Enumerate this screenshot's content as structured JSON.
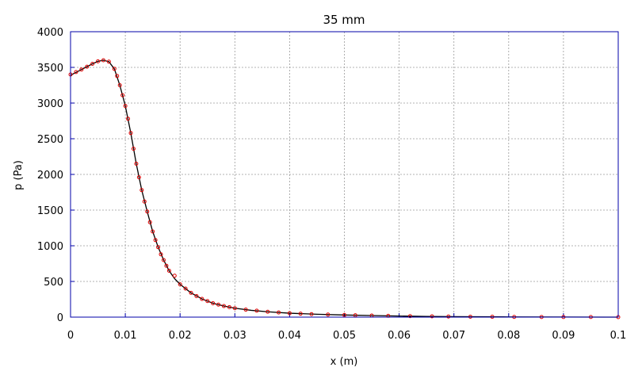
{
  "chart_data": {
    "type": "line",
    "title": "35 mm",
    "xlabel": "x (m)",
    "ylabel": "p (Pa)",
    "xlim": [
      0,
      0.1
    ],
    "ylim": [
      0,
      4000
    ],
    "grid": true,
    "xticks": [
      "0",
      "0.01",
      "0.02",
      "0.03",
      "0.04",
      "0.05",
      "0.06",
      "0.07",
      "0.08",
      "0.09",
      "0.1"
    ],
    "xtick_values": [
      0,
      0.01,
      0.02,
      0.03,
      0.04,
      0.05,
      0.06,
      0.07,
      0.08,
      0.09,
      0.1
    ],
    "yticks": [
      "0",
      "500",
      "1000",
      "1500",
      "2000",
      "2500",
      "3000",
      "3500",
      "4000"
    ],
    "ytick_values": [
      0,
      500,
      1000,
      1500,
      2000,
      2500,
      3000,
      3500,
      4000
    ],
    "series": [
      {
        "style": "line",
        "color": "#000000",
        "x": [
          0,
          0.002,
          0.004,
          0.005,
          0.006,
          0.007,
          0.008,
          0.009,
          0.01,
          0.011,
          0.012,
          0.013,
          0.014,
          0.015,
          0.016,
          0.017,
          0.018,
          0.019,
          0.02,
          0.022,
          0.024,
          0.026,
          0.028,
          0.03,
          0.033,
          0.036,
          0.04,
          0.045,
          0.05,
          0.055,
          0.06,
          0.065,
          0.07,
          0.08,
          0.09,
          0.1
        ],
        "y": [
          3390,
          3470,
          3550,
          3585,
          3600,
          3580,
          3480,
          3250,
          2960,
          2580,
          2150,
          1780,
          1480,
          1200,
          980,
          800,
          650,
          540,
          460,
          340,
          255,
          195,
          155,
          125,
          95,
          75,
          55,
          40,
          30,
          22,
          15,
          10,
          6,
          3,
          1,
          0
        ]
      },
      {
        "style": "markers",
        "color": "#e00000",
        "x": [
          0,
          0.001,
          0.002,
          0.003,
          0.004,
          0.005,
          0.006,
          0.007,
          0.008,
          0.0085,
          0.009,
          0.0095,
          0.01,
          0.0105,
          0.011,
          0.0115,
          0.012,
          0.0125,
          0.013,
          0.0135,
          0.014,
          0.0145,
          0.015,
          0.0155,
          0.016,
          0.0165,
          0.017,
          0.0175,
          0.018,
          0.019,
          0.02,
          0.021,
          0.022,
          0.023,
          0.024,
          0.025,
          0.026,
          0.027,
          0.028,
          0.029,
          0.03,
          0.032,
          0.034,
          0.036,
          0.038,
          0.04,
          0.042,
          0.044,
          0.047,
          0.05,
          0.052,
          0.055,
          0.058,
          0.062,
          0.066,
          0.069,
          0.073,
          0.077,
          0.081,
          0.086,
          0.09,
          0.095,
          0.1
        ],
        "y": [
          3400,
          3435,
          3470,
          3510,
          3550,
          3585,
          3600,
          3580,
          3480,
          3380,
          3250,
          3110,
          2960,
          2780,
          2580,
          2360,
          2150,
          1960,
          1780,
          1620,
          1480,
          1330,
          1200,
          1080,
          980,
          880,
          800,
          720,
          650,
          580,
          460,
          400,
          340,
          295,
          255,
          225,
          195,
          175,
          155,
          140,
          125,
          105,
          90,
          75,
          65,
          55,
          48,
          42,
          36,
          30,
          26,
          22,
          18,
          14,
          11,
          8,
          6,
          5,
          3,
          2,
          1,
          1,
          0
        ]
      }
    ]
  }
}
